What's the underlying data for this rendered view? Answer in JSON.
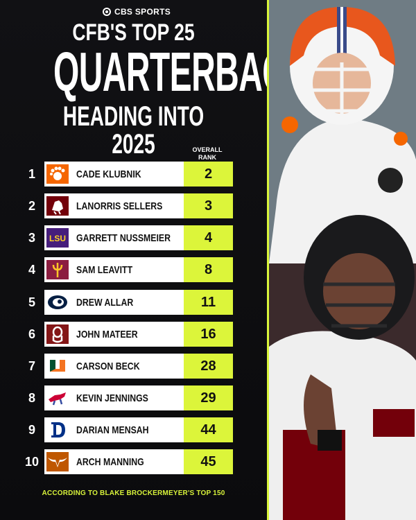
{
  "brand": {
    "name": "CBS SPORTS"
  },
  "title": {
    "line1": "CFB'S TOP 25",
    "line2": "QUARTERBACKS",
    "line3": "HEADING INTO 2025"
  },
  "column_header": {
    "line1": "OVERALL",
    "line2": "RANK"
  },
  "rows": [
    {
      "position": "1",
      "name": "CADE KLUBNIK",
      "rank": "2",
      "school_color": "#f56600",
      "logo_icon": "clemson-paw-icon"
    },
    {
      "position": "2",
      "name": "LANORRIS SELLERS",
      "rank": "3",
      "school_color": "#73000a",
      "logo_icon": "south-carolina-gamecock-icon"
    },
    {
      "position": "3",
      "name": "GARRETT NUSSMEIER",
      "rank": "4",
      "school_color": "#461d7c",
      "logo_icon": "lsu-wordmark-icon",
      "logo_text": "LSU"
    },
    {
      "position": "4",
      "name": "SAM LEAVITT",
      "rank": "8",
      "school_color": "#8c1d40",
      "logo_icon": "arizona-state-pitchfork-icon"
    },
    {
      "position": "5",
      "name": "DREW ALLAR",
      "rank": "11",
      "school_color": "#041e42",
      "logo_icon": "penn-state-lion-icon"
    },
    {
      "position": "6",
      "name": "JOHN MATEER",
      "rank": "16",
      "school_color": "#841617",
      "logo_icon": "oklahoma-ou-icon"
    },
    {
      "position": "7",
      "name": "CARSON BECK",
      "rank": "28",
      "school_color": "#005030",
      "logo_icon": "miami-u-icon"
    },
    {
      "position": "8",
      "name": "KEVIN JENNINGS",
      "rank": "29",
      "school_color": "#cc0035",
      "logo_icon": "smu-mustang-icon"
    },
    {
      "position": "9",
      "name": "DARIAN MENSAH",
      "rank": "44",
      "school_color": "#003087",
      "logo_icon": "duke-d-icon"
    },
    {
      "position": "10",
      "name": "ARCH MANNING",
      "rank": "45",
      "school_color": "#bf5700",
      "logo_icon": "texas-longhorn-icon"
    }
  ],
  "footer": {
    "text": "ACCORDING TO BLAKE BROCKERMEYER'S TOP 150"
  },
  "colors": {
    "accent": "#dcf53a",
    "background": "#0c0c0e"
  }
}
